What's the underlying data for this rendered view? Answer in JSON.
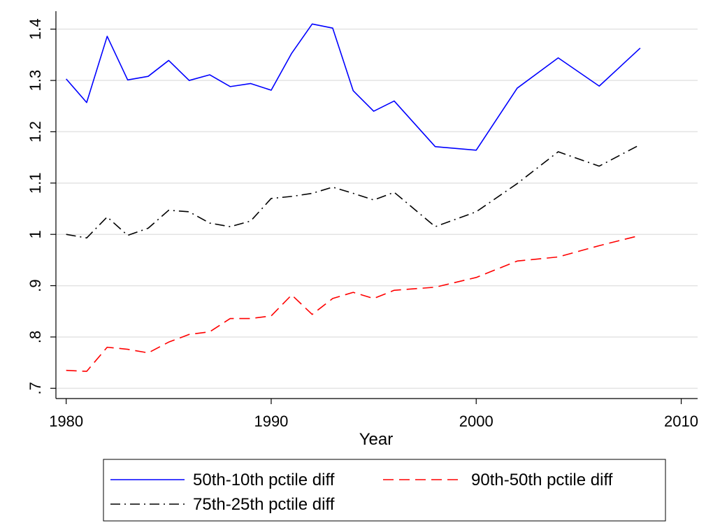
{
  "chart_data": {
    "type": "line",
    "title": "",
    "xlabel": "Year",
    "ylabel": "",
    "xlim": [
      1979.5,
      2010.8
    ],
    "ylim": [
      0.68,
      1.435
    ],
    "x_ticks": [
      {
        "value": 1980,
        "label": "1980"
      },
      {
        "value": 1990,
        "label": "1990"
      },
      {
        "value": 2000,
        "label": "2000"
      },
      {
        "value": 2010,
        "label": "2010"
      }
    ],
    "y_ticks": [
      {
        "value": 0.7,
        "label": ".7"
      },
      {
        "value": 0.8,
        "label": ".8"
      },
      {
        "value": 0.9,
        "label": ".9"
      },
      {
        "value": 1.0,
        "label": "1"
      },
      {
        "value": 1.1,
        "label": "1.1"
      },
      {
        "value": 1.2,
        "label": "1.2"
      },
      {
        "value": 1.3,
        "label": "1.3"
      },
      {
        "value": 1.4,
        "label": "1.4"
      }
    ],
    "grid": "horizontal",
    "legend_position": "bottom",
    "series": [
      {
        "name": "50th-10th pctile diff",
        "color": "#0000ff",
        "dash": "solid",
        "x": [
          1980,
          1981,
          1982,
          1983,
          1984,
          1985,
          1986,
          1987,
          1988,
          1989,
          1990,
          1991,
          1992,
          1993,
          1994,
          1995,
          1996,
          1998,
          2000,
          2002,
          2004,
          2006,
          2008
        ],
        "y": [
          1.303,
          1.257,
          1.386,
          1.301,
          1.308,
          1.339,
          1.3,
          1.311,
          1.288,
          1.294,
          1.281,
          1.353,
          1.41,
          1.402,
          1.28,
          1.24,
          1.26,
          1.171,
          1.164,
          1.285,
          1.344,
          1.289,
          1.363
        ]
      },
      {
        "name": "90th-50th pctile diff",
        "color": "#ff0000",
        "dash": "dashed",
        "x": [
          1980,
          1981,
          1982,
          1983,
          1984,
          1985,
          1986,
          1987,
          1988,
          1989,
          1990,
          1991,
          1992,
          1993,
          1994,
          1995,
          1996,
          1998,
          2000,
          2002,
          2004,
          2006,
          2008
        ],
        "y": [
          0.735,
          0.733,
          0.78,
          0.776,
          0.769,
          0.79,
          0.805,
          0.81,
          0.836,
          0.836,
          0.841,
          0.882,
          0.844,
          0.875,
          0.887,
          0.875,
          0.891,
          0.897,
          0.916,
          0.948,
          0.956,
          0.978,
          0.998
        ]
      },
      {
        "name": "75th-25th pctile diff",
        "color": "#000000",
        "dash": "dashdot",
        "x": [
          1980,
          1981,
          1982,
          1983,
          1984,
          1985,
          1986,
          1987,
          1988,
          1989,
          1990,
          1991,
          1992,
          1993,
          1994,
          1995,
          1996,
          1998,
          2000,
          2002,
          2004,
          2006,
          2008
        ],
        "y": [
          1.0,
          0.993,
          1.034,
          0.998,
          1.012,
          1.047,
          1.044,
          1.022,
          1.015,
          1.026,
          1.07,
          1.074,
          1.08,
          1.092,
          1.08,
          1.067,
          1.082,
          1.015,
          1.044,
          1.099,
          1.161,
          1.133,
          1.175
        ]
      }
    ],
    "legend_order": [
      0,
      1,
      2
    ]
  }
}
